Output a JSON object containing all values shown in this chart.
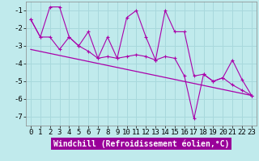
{
  "xlabel": "Windchill (Refroidissement éolien,°C)",
  "background_color": "#c0eaec",
  "grid_color": "#a8d8dc",
  "line_color": "#aa00aa",
  "x_values": [
    0,
    1,
    2,
    3,
    4,
    5,
    6,
    7,
    8,
    9,
    10,
    11,
    12,
    13,
    14,
    15,
    16,
    17,
    18,
    19,
    20,
    21,
    22,
    23
  ],
  "line1": [
    -1.5,
    -2.5,
    -0.8,
    -0.8,
    -2.5,
    -3.0,
    -2.2,
    -3.7,
    -2.5,
    -3.7,
    -1.4,
    -1.0,
    -2.5,
    -3.8,
    -1.0,
    -2.2,
    -2.2,
    -4.7,
    -4.6,
    -5.0,
    -4.8,
    -3.8,
    -4.9,
    -5.8
  ],
  "line2": [
    -1.5,
    -2.5,
    -2.5,
    -3.2,
    -2.5,
    -3.0,
    -3.3,
    -3.7,
    -3.6,
    -3.7,
    -3.6,
    -3.5,
    -3.6,
    -3.8,
    -3.6,
    -3.7,
    -4.7,
    -7.1,
    -4.6,
    -5.0,
    -4.8,
    -5.2,
    -5.5,
    -5.8
  ],
  "trend_x": [
    0,
    23
  ],
  "trend_y": [
    -3.2,
    -5.8
  ],
  "ylim": [
    -7.5,
    -0.5
  ],
  "yticks": [
    -7,
    -6,
    -5,
    -4,
    -3,
    -2,
    -1
  ],
  "xlim": [
    -0.5,
    23.5
  ],
  "tick_fontsize": 6.5,
  "label_fontsize": 7,
  "xlabel_bg": "#990099",
  "xlabel_fg": "white"
}
